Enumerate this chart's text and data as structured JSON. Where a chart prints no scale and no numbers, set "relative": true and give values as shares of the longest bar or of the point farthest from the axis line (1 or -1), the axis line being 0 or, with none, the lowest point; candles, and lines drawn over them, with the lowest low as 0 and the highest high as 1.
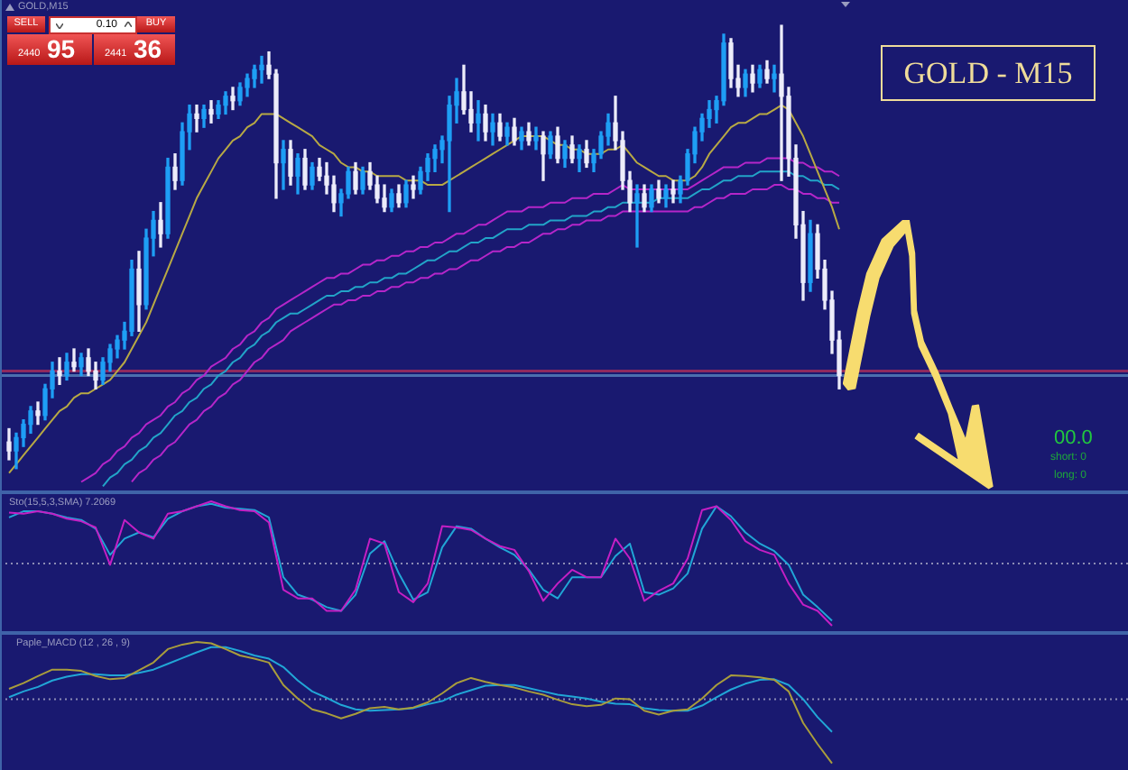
{
  "chart_data": [
    {
      "type": "candlestick",
      "relative": true,
      "categories": [
        null,
        null,
        null,
        null,
        null,
        null,
        null,
        null,
        null,
        null,
        null,
        null,
        null,
        null,
        null,
        null,
        null,
        null,
        null,
        null,
        null,
        null,
        null,
        null,
        null,
        null,
        null,
        null,
        null,
        null,
        null,
        null,
        null,
        null,
        null,
        null,
        null,
        null,
        null,
        null,
        null,
        null,
        null,
        null,
        null,
        null,
        null,
        null,
        null,
        null,
        null,
        null,
        null,
        null,
        null,
        null,
        null,
        null,
        null,
        null,
        null,
        null,
        null,
        null,
        null,
        null,
        null,
        null,
        null,
        null,
        null,
        null,
        null,
        null,
        null,
        null,
        null,
        null,
        null,
        null,
        null,
        null,
        null,
        null,
        null,
        null,
        null,
        null,
        null,
        null,
        null,
        null,
        null,
        null,
        null,
        null,
        null,
        null,
        null,
        null,
        null,
        null,
        null,
        null,
        null,
        null,
        null,
        null,
        null,
        null,
        null,
        null,
        null,
        null,
        null,
        null
      ],
      "ohlc": [
        [
          0.06,
          0.09,
          0.02,
          0.04
        ],
        [
          0.04,
          0.08,
          0.0,
          0.07
        ],
        [
          0.07,
          0.11,
          0.05,
          0.1
        ],
        [
          0.1,
          0.14,
          0.08,
          0.13
        ],
        [
          0.13,
          0.15,
          0.1,
          0.12
        ],
        [
          0.12,
          0.19,
          0.11,
          0.18
        ],
        [
          0.18,
          0.24,
          0.16,
          0.22
        ],
        [
          0.22,
          0.25,
          0.19,
          0.21
        ],
        [
          0.21,
          0.26,
          0.2,
          0.24
        ],
        [
          0.24,
          0.27,
          0.22,
          0.23
        ],
        [
          0.23,
          0.26,
          0.21,
          0.25
        ],
        [
          0.25,
          0.27,
          0.21,
          0.22
        ],
        [
          0.22,
          0.24,
          0.18,
          0.2
        ],
        [
          0.2,
          0.25,
          0.19,
          0.24
        ],
        [
          0.24,
          0.28,
          0.22,
          0.27
        ],
        [
          0.27,
          0.3,
          0.25,
          0.29
        ],
        [
          0.29,
          0.33,
          0.27,
          0.31
        ],
        [
          0.31,
          0.47,
          0.3,
          0.45
        ],
        [
          0.45,
          0.49,
          0.31,
          0.37
        ],
        [
          0.37,
          0.54,
          0.36,
          0.52
        ],
        [
          0.52,
          0.58,
          0.48,
          0.56
        ],
        [
          0.56,
          0.6,
          0.5,
          0.53
        ],
        [
          0.53,
          0.7,
          0.52,
          0.68
        ],
        [
          0.68,
          0.71,
          0.63,
          0.65
        ],
        [
          0.65,
          0.78,
          0.64,
          0.76
        ],
        [
          0.76,
          0.82,
          0.72,
          0.8
        ],
        [
          0.8,
          0.82,
          0.76,
          0.79
        ],
        [
          0.79,
          0.82,
          0.77,
          0.81
        ],
        [
          0.81,
          0.83,
          0.78,
          0.8
        ],
        [
          0.8,
          0.83,
          0.79,
          0.82
        ],
        [
          0.82,
          0.85,
          0.8,
          0.84
        ],
        [
          0.84,
          0.86,
          0.81,
          0.83
        ],
        [
          0.83,
          0.87,
          0.82,
          0.86
        ],
        [
          0.86,
          0.89,
          0.84,
          0.88
        ],
        [
          0.88,
          0.91,
          0.86,
          0.9
        ],
        [
          0.9,
          0.93,
          0.87,
          0.91
        ],
        [
          0.91,
          0.94,
          0.88,
          0.89
        ],
        [
          0.89,
          0.9,
          0.61,
          0.69
        ],
        [
          0.69,
          0.74,
          0.63,
          0.72
        ],
        [
          0.72,
          0.74,
          0.64,
          0.66
        ],
        [
          0.66,
          0.71,
          0.62,
          0.7
        ],
        [
          0.7,
          0.72,
          0.63,
          0.64
        ],
        [
          0.64,
          0.69,
          0.63,
          0.68
        ],
        [
          0.68,
          0.7,
          0.65,
          0.66
        ],
        [
          0.66,
          0.69,
          0.62,
          0.64
        ],
        [
          0.64,
          0.66,
          0.58,
          0.6
        ],
        [
          0.6,
          0.63,
          0.57,
          0.62
        ],
        [
          0.62,
          0.68,
          0.61,
          0.67
        ],
        [
          0.67,
          0.69,
          0.62,
          0.63
        ],
        [
          0.63,
          0.68,
          0.62,
          0.67
        ],
        [
          0.67,
          0.69,
          0.63,
          0.64
        ],
        [
          0.64,
          0.66,
          0.6,
          0.61
        ],
        [
          0.61,
          0.64,
          0.58,
          0.59
        ],
        [
          0.59,
          0.63,
          0.58,
          0.62
        ],
        [
          0.62,
          0.64,
          0.59,
          0.6
        ],
        [
          0.6,
          0.65,
          0.59,
          0.64
        ],
        [
          0.64,
          0.66,
          0.61,
          0.63
        ],
        [
          0.63,
          0.68,
          0.62,
          0.67
        ],
        [
          0.67,
          0.71,
          0.65,
          0.7
        ],
        [
          0.7,
          0.73,
          0.67,
          0.72
        ],
        [
          0.72,
          0.75,
          0.69,
          0.74
        ],
        [
          0.74,
          0.84,
          0.58,
          0.82
        ],
        [
          0.82,
          0.88,
          0.78,
          0.85
        ],
        [
          0.85,
          0.91,
          0.8,
          0.81
        ],
        [
          0.81,
          0.85,
          0.76,
          0.78
        ],
        [
          0.78,
          0.83,
          0.74,
          0.8
        ],
        [
          0.8,
          0.82,
          0.74,
          0.76
        ],
        [
          0.76,
          0.8,
          0.73,
          0.78
        ],
        [
          0.78,
          0.8,
          0.74,
          0.75
        ],
        [
          0.75,
          0.78,
          0.73,
          0.77
        ],
        [
          0.77,
          0.79,
          0.73,
          0.74
        ],
        [
          0.74,
          0.77,
          0.72,
          0.76
        ],
        [
          0.76,
          0.78,
          0.73,
          0.74
        ],
        [
          0.74,
          0.77,
          0.72,
          0.75
        ],
        [
          0.75,
          0.76,
          0.65,
          0.71
        ],
        [
          0.71,
          0.76,
          0.7,
          0.75
        ],
        [
          0.75,
          0.77,
          0.69,
          0.7
        ],
        [
          0.7,
          0.74,
          0.68,
          0.73
        ],
        [
          0.73,
          0.75,
          0.69,
          0.7
        ],
        [
          0.7,
          0.73,
          0.67,
          0.72
        ],
        [
          0.72,
          0.74,
          0.68,
          0.69
        ],
        [
          0.69,
          0.72,
          0.67,
          0.71
        ],
        [
          0.71,
          0.76,
          0.7,
          0.75
        ],
        [
          0.75,
          0.8,
          0.73,
          0.78
        ],
        [
          0.78,
          0.84,
          0.72,
          0.74
        ],
        [
          0.74,
          0.76,
          0.63,
          0.65
        ],
        [
          0.65,
          0.67,
          0.58,
          0.6
        ],
        [
          0.6,
          0.64,
          0.5,
          0.62
        ],
        [
          0.62,
          0.64,
          0.58,
          0.59
        ],
        [
          0.59,
          0.64,
          0.58,
          0.63
        ],
        [
          0.63,
          0.65,
          0.6,
          0.61
        ],
        [
          0.61,
          0.64,
          0.59,
          0.63
        ],
        [
          0.63,
          0.65,
          0.6,
          0.62
        ],
        [
          0.62,
          0.66,
          0.6,
          0.65
        ],
        [
          0.65,
          0.72,
          0.64,
          0.71
        ],
        [
          0.71,
          0.77,
          0.69,
          0.76
        ],
        [
          0.76,
          0.8,
          0.74,
          0.79
        ],
        [
          0.79,
          0.83,
          0.77,
          0.81
        ],
        [
          0.81,
          0.84,
          0.78,
          0.83
        ],
        [
          0.83,
          0.98,
          0.82,
          0.96
        ],
        [
          0.96,
          0.97,
          0.86,
          0.88
        ],
        [
          0.88,
          0.91,
          0.84,
          0.86
        ],
        [
          0.86,
          0.9,
          0.84,
          0.89
        ],
        [
          0.89,
          0.91,
          0.85,
          0.87
        ],
        [
          0.87,
          0.91,
          0.86,
          0.9
        ],
        [
          0.9,
          0.92,
          0.87,
          0.88
        ],
        [
          0.88,
          0.91,
          0.85,
          0.89
        ],
        [
          0.89,
          1.0,
          0.65,
          0.84
        ],
        [
          0.84,
          0.86,
          0.66,
          0.7
        ],
        [
          0.7,
          0.73,
          0.52,
          0.55
        ],
        [
          0.55,
          0.58,
          0.38,
          0.42
        ],
        [
          0.42,
          0.56,
          0.4,
          0.53
        ],
        [
          0.53,
          0.55,
          0.43,
          0.45
        ],
        [
          0.45,
          0.47,
          0.36,
          0.38
        ],
        [
          0.38,
          0.4,
          0.26,
          0.29
        ],
        [
          0.29,
          0.31,
          0.18,
          0.21
        ]
      ],
      "colors": [
        "#ececfa",
        "#1e9ef5",
        "#1e9ef5",
        "#1e9ef5",
        "#ececfa",
        "#1e9ef5",
        "#1e9ef5",
        "#ececfa",
        "#1e9ef5",
        "#ececfa",
        "#1e9ef5",
        "#ececfa",
        "#ececfa",
        "#1e9ef5",
        "#1e9ef5",
        "#1e9ef5",
        "#1e9ef5",
        "#1e9ef5",
        "#ececfa",
        "#1e9ef5",
        "#1e9ef5",
        "#ececfa",
        "#1e9ef5",
        "#ececfa",
        "#1e9ef5",
        "#1e9ef5",
        "#ececfa",
        "#1e9ef5",
        "#ececfa",
        "#1e9ef5",
        "#1e9ef5",
        "#ececfa",
        "#1e9ef5",
        "#1e9ef5",
        "#1e9ef5",
        "#1e9ef5",
        "#ececfa",
        "#ececfa",
        "#1e9ef5",
        "#ececfa",
        "#1e9ef5",
        "#ececfa",
        "#1e9ef5",
        "#ececfa",
        "#ececfa",
        "#ececfa",
        "#1e9ef5",
        "#1e9ef5",
        "#ececfa",
        "#1e9ef5",
        "#ececfa",
        "#ececfa",
        "#ececfa",
        "#1e9ef5",
        "#ececfa",
        "#1e9ef5",
        "#ececfa",
        "#1e9ef5",
        "#1e9ef5",
        "#1e9ef5",
        "#1e9ef5",
        "#1e9ef5",
        "#1e9ef5",
        "#ececfa",
        "#ececfa",
        "#1e9ef5",
        "#ececfa",
        "#1e9ef5",
        "#ececfa",
        "#1e9ef5",
        "#ececfa",
        "#1e9ef5",
        "#ececfa",
        "#1e9ef5",
        "#ececfa",
        "#1e9ef5",
        "#ececfa",
        "#1e9ef5",
        "#ececfa",
        "#1e9ef5",
        "#ececfa",
        "#1e9ef5",
        "#1e9ef5",
        "#1e9ef5",
        "#ececfa",
        "#ececfa",
        "#ececfa",
        "#1e9ef5",
        "#ececfa",
        "#1e9ef5",
        "#ececfa",
        "#1e9ef5",
        "#ececfa",
        "#1e9ef5",
        "#1e9ef5",
        "#1e9ef5",
        "#1e9ef5",
        "#1e9ef5",
        "#1e9ef5",
        "#1e9ef5",
        "#ececfa",
        "#ececfa",
        "#1e9ef5",
        "#ececfa",
        "#1e9ef5",
        "#ececfa",
        "#1e9ef5",
        "#ececfa",
        "#ececfa",
        "#ececfa",
        "#ececfa",
        "#1e9ef5",
        "#ececfa",
        "#ececfa",
        "#ececfa",
        "#ececfa"
      ],
      "series": [
        {
          "type": "line",
          "color": "#b8a944",
          "values": [
            -0.01,
            0.01,
            0.03,
            0.05,
            0.07,
            0.09,
            0.11,
            0.13,
            0.14,
            0.16,
            0.17,
            0.17,
            0.18,
            0.19,
            0.2,
            0.22,
            0.24,
            0.27,
            0.3,
            0.33,
            0.37,
            0.41,
            0.45,
            0.49,
            0.53,
            0.57,
            0.61,
            0.64,
            0.67,
            0.7,
            0.72,
            0.74,
            0.75,
            0.77,
            0.78,
            0.8,
            0.8,
            0.8,
            0.79,
            0.78,
            0.77,
            0.76,
            0.75,
            0.73,
            0.72,
            0.71,
            0.69,
            0.68,
            0.68,
            0.67,
            0.67,
            0.66,
            0.66,
            0.66,
            0.66,
            0.65,
            0.65,
            0.65,
            0.64,
            0.64,
            0.64,
            0.65,
            0.66,
            0.67,
            0.68,
            0.69,
            0.7,
            0.71,
            0.72,
            0.73,
            0.74,
            0.75,
            0.75,
            0.75,
            0.75,
            0.74,
            0.73,
            0.73,
            0.72,
            0.72,
            0.71,
            0.71,
            0.71,
            0.72,
            0.72,
            0.73,
            0.71,
            0.69,
            0.68,
            0.67,
            0.66,
            0.66,
            0.65,
            0.65,
            0.65,
            0.66,
            0.68,
            0.71,
            0.73,
            0.75,
            0.77,
            0.78,
            0.78,
            0.79,
            0.8,
            0.8,
            0.81,
            0.82,
            0.81,
            0.78,
            0.75,
            0.71,
            0.67,
            0.63,
            0.59,
            0.54
          ]
        },
        {
          "type": "line",
          "color": "#b526c9",
          "values": [
            null,
            null,
            null,
            null,
            null,
            null,
            null,
            null,
            null,
            null,
            -0.03,
            -0.02,
            -0.01,
            0.01,
            0.02,
            0.04,
            0.05,
            0.07,
            0.08,
            0.1,
            0.11,
            0.12,
            0.14,
            0.15,
            0.17,
            0.18,
            0.2,
            0.21,
            0.23,
            0.24,
            0.25,
            0.27,
            0.28,
            0.3,
            0.31,
            0.33,
            0.34,
            0.36,
            0.37,
            0.38,
            0.39,
            0.4,
            0.41,
            0.42,
            0.43,
            0.43,
            0.44,
            0.44,
            0.45,
            0.46,
            0.46,
            0.47,
            0.47,
            0.48,
            0.48,
            0.49,
            0.49,
            0.5,
            0.5,
            0.51,
            0.51,
            0.52,
            0.53,
            0.53,
            0.54,
            0.55,
            0.55,
            0.56,
            0.57,
            0.58,
            0.58,
            0.58,
            0.59,
            0.59,
            0.59,
            0.6,
            0.6,
            0.6,
            0.61,
            0.61,
            0.61,
            0.62,
            0.62,
            0.62,
            0.63,
            0.64,
            0.63,
            0.63,
            0.63,
            0.63,
            0.63,
            0.63,
            0.63,
            0.63,
            0.63,
            0.64,
            0.65,
            0.66,
            0.67,
            0.68,
            0.68,
            0.68,
            0.69,
            0.69,
            0.69,
            0.7,
            0.7,
            0.7,
            0.7,
            0.69,
            0.69,
            0.68,
            0.68,
            0.67,
            0.67,
            0.66
          ]
        },
        {
          "type": "line",
          "color": "#22a4c8",
          "values": [
            null,
            null,
            null,
            null,
            null,
            null,
            null,
            null,
            null,
            null,
            null,
            null,
            null,
            -0.04,
            -0.02,
            -0.01,
            0.01,
            0.02,
            0.04,
            0.05,
            0.07,
            0.08,
            0.1,
            0.12,
            0.13,
            0.15,
            0.16,
            0.18,
            0.19,
            0.21,
            0.22,
            0.24,
            0.25,
            0.27,
            0.28,
            0.3,
            0.31,
            0.33,
            0.34,
            0.35,
            0.35,
            0.36,
            0.37,
            0.38,
            0.39,
            0.39,
            0.4,
            0.4,
            0.41,
            0.41,
            0.42,
            0.42,
            0.43,
            0.43,
            0.44,
            0.44,
            0.45,
            0.46,
            0.47,
            0.47,
            0.48,
            0.49,
            0.49,
            0.5,
            0.51,
            0.51,
            0.52,
            0.52,
            0.53,
            0.54,
            0.54,
            0.54,
            0.55,
            0.55,
            0.55,
            0.56,
            0.56,
            0.56,
            0.57,
            0.57,
            0.57,
            0.58,
            0.58,
            0.59,
            0.59,
            0.6,
            0.6,
            0.6,
            0.6,
            0.6,
            0.61,
            0.61,
            0.61,
            0.61,
            0.61,
            0.62,
            0.63,
            0.63,
            0.64,
            0.65,
            0.65,
            0.66,
            0.66,
            0.66,
            0.67,
            0.67,
            0.67,
            0.67,
            0.67,
            0.66,
            0.66,
            0.65,
            0.65,
            0.64,
            0.64,
            0.63
          ]
        },
        {
          "type": "line",
          "color": "#b526c9",
          "values": [
            null,
            null,
            null,
            null,
            null,
            null,
            null,
            null,
            null,
            null,
            null,
            null,
            null,
            null,
            null,
            null,
            null,
            -0.03,
            -0.01,
            0.0,
            0.02,
            0.03,
            0.05,
            0.06,
            0.08,
            0.1,
            0.11,
            0.13,
            0.14,
            0.16,
            0.17,
            0.19,
            0.2,
            0.22,
            0.24,
            0.25,
            0.27,
            0.28,
            0.29,
            0.31,
            0.32,
            0.33,
            0.34,
            0.35,
            0.36,
            0.37,
            0.37,
            0.38,
            0.38,
            0.39,
            0.39,
            0.4,
            0.4,
            0.41,
            0.41,
            0.42,
            0.42,
            0.43,
            0.43,
            0.44,
            0.44,
            0.45,
            0.45,
            0.46,
            0.47,
            0.47,
            0.48,
            0.49,
            0.49,
            0.5,
            0.5,
            0.51,
            0.51,
            0.52,
            0.53,
            0.53,
            0.54,
            0.54,
            0.55,
            0.55,
            0.56,
            0.56,
            0.56,
            0.57,
            0.57,
            0.58,
            0.58,
            0.58,
            0.58,
            0.58,
            0.58,
            0.58,
            0.58,
            0.58,
            0.58,
            0.59,
            0.59,
            0.6,
            0.61,
            0.61,
            0.62,
            0.62,
            0.62,
            0.63,
            0.63,
            0.63,
            0.64,
            0.64,
            0.63,
            0.63,
            0.62,
            0.62,
            0.61,
            0.61,
            0.6,
            0.6
          ]
        }
      ],
      "ref_lines": [
        {
          "axis": "y",
          "value": 0.22,
          "color": "#8e2a5e",
          "line_style": "solid"
        },
        {
          "axis": "y",
          "value": 0.21,
          "color": "#4b6fae",
          "line_style": "solid"
        }
      ],
      "annotations": [
        "GOLD,M15",
        "SELL",
        "0.10",
        "BUY",
        "2440",
        "95",
        "2441",
        "36",
        "00.0",
        "short: 0",
        "long: 0",
        "GOLD - M15"
      ],
      "tick_labels": false,
      "grid": false,
      "legend": false
    },
    {
      "type": "line",
      "title": "Sto(15,5,3,SMA) 7.2069",
      "relative": true,
      "categories": [
        null,
        null,
        null,
        null,
        null,
        null,
        null,
        null,
        null,
        null,
        null,
        null,
        null,
        null,
        null,
        null,
        null,
        null,
        null,
        null,
        null,
        null,
        null,
        null,
        null,
        null,
        null,
        null,
        null,
        null,
        null,
        null,
        null,
        null,
        null,
        null,
        null,
        null,
        null,
        null,
        null,
        null,
        null,
        null,
        null,
        null,
        null,
        null,
        null,
        null,
        null,
        null,
        null,
        null,
        null,
        null,
        null,
        null
      ],
      "series": [
        {
          "type": "line",
          "color": "#c41fc4",
          "values": [
            0.82,
            0.8,
            0.84,
            0.8,
            0.72,
            0.68,
            0.58,
            -0.02,
            0.7,
            0.5,
            0.4,
            0.8,
            0.84,
            0.92,
            1.0,
            0.92,
            0.86,
            0.84,
            0.66,
            -0.42,
            -0.56,
            -0.56,
            -0.76,
            -0.76,
            -0.42,
            0.4,
            0.32,
            -0.46,
            -0.62,
            -0.32,
            0.6,
            0.58,
            0.54,
            0.4,
            0.28,
            0.22,
            -0.12,
            -0.6,
            -0.32,
            -0.1,
            -0.22,
            -0.22,
            0.4,
            0.08,
            -0.6,
            -0.44,
            -0.32,
            0.08,
            0.86,
            0.92,
            0.7,
            0.36,
            0.22,
            0.14,
            -0.32,
            -0.66,
            -0.76,
            -1.0
          ]
        },
        {
          "type": "line",
          "color": "#21a6d6",
          "values": [
            0.74,
            0.84,
            0.84,
            0.8,
            0.74,
            0.7,
            0.56,
            0.14,
            0.4,
            0.5,
            0.42,
            0.72,
            0.84,
            0.92,
            0.96,
            0.9,
            0.88,
            0.86,
            0.74,
            -0.22,
            -0.5,
            -0.58,
            -0.7,
            -0.76,
            -0.5,
            0.16,
            0.36,
            -0.16,
            -0.58,
            -0.46,
            0.26,
            0.6,
            0.56,
            0.4,
            0.26,
            0.14,
            -0.1,
            -0.42,
            -0.56,
            -0.22,
            -0.22,
            -0.22,
            0.12,
            0.32,
            -0.46,
            -0.5,
            -0.4,
            -0.16,
            0.56,
            0.92,
            0.76,
            0.5,
            0.32,
            0.2,
            -0.02,
            -0.5,
            -0.7,
            -0.92
          ]
        }
      ],
      "ref_lines": [
        {
          "axis": "y",
          "value": 0,
          "color": "#8d8db5",
          "line_style": "dotted"
        }
      ],
      "tick_labels": false,
      "grid": false,
      "legend": false
    },
    {
      "type": "line",
      "title": "Paple_MACD (12 , 26 , 9)",
      "relative": true,
      "categories": [
        null,
        null,
        null,
        null,
        null,
        null,
        null,
        null,
        null,
        null,
        null,
        null,
        null,
        null,
        null,
        null,
        null,
        null,
        null,
        null,
        null,
        null,
        null,
        null,
        null,
        null,
        null,
        null,
        null,
        null,
        null,
        null,
        null,
        null,
        null,
        null,
        null,
        null,
        null,
        null,
        null,
        null,
        null,
        null,
        null,
        null,
        null,
        null,
        null,
        null,
        null,
        null,
        null,
        null,
        null,
        null,
        null,
        null
      ],
      "series": [
        {
          "type": "line",
          "color": "#a99d3c",
          "values": [
            0.16,
            0.25,
            0.36,
            0.46,
            0.46,
            0.44,
            0.36,
            0.31,
            0.33,
            0.45,
            0.57,
            0.78,
            0.85,
            0.89,
            0.87,
            0.78,
            0.68,
            0.63,
            0.57,
            0.22,
            0.01,
            -0.16,
            -0.22,
            -0.3,
            -0.23,
            -0.14,
            -0.12,
            -0.16,
            -0.13,
            -0.05,
            0.09,
            0.25,
            0.33,
            0.27,
            0.22,
            0.18,
            0.12,
            0.07,
            -0.01,
            -0.08,
            -0.11,
            -0.09,
            0.01,
            0.0,
            -0.18,
            -0.24,
            -0.18,
            -0.16,
            0.01,
            0.22,
            0.37,
            0.36,
            0.34,
            0.3,
            0.12,
            -0.37,
            -0.7,
            -1.0
          ]
        },
        {
          "type": "line",
          "color": "#21a6d6",
          "values": [
            0.03,
            0.12,
            0.19,
            0.29,
            0.35,
            0.39,
            0.39,
            0.37,
            0.37,
            0.41,
            0.46,
            0.55,
            0.64,
            0.73,
            0.81,
            0.81,
            0.75,
            0.68,
            0.63,
            0.5,
            0.29,
            0.12,
            0.02,
            -0.09,
            -0.16,
            -0.18,
            -0.17,
            -0.16,
            -0.14,
            -0.08,
            -0.03,
            0.07,
            0.14,
            0.21,
            0.22,
            0.22,
            0.17,
            0.12,
            0.07,
            0.04,
            0.01,
            -0.04,
            -0.07,
            -0.08,
            -0.14,
            -0.17,
            -0.18,
            -0.18,
            -0.1,
            0.03,
            0.15,
            0.24,
            0.3,
            0.31,
            0.22,
            0.0,
            -0.28,
            -0.51
          ]
        }
      ],
      "ref_lines": [
        {
          "axis": "y",
          "value": 0,
          "color": "#8d8db5",
          "line_style": "dotted"
        }
      ],
      "tick_labels": false,
      "grid": false,
      "legend": false
    }
  ]
}
